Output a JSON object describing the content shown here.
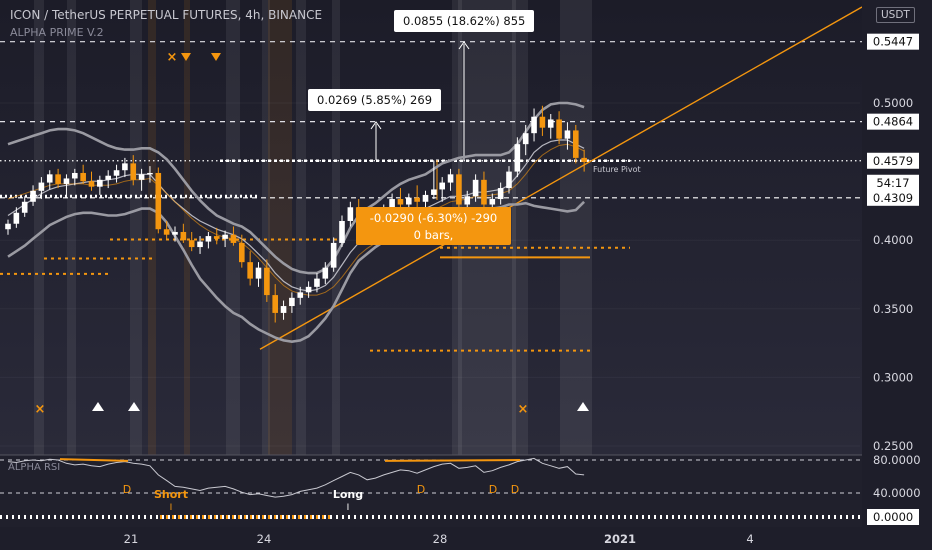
{
  "header": {
    "title": "ICON / TetherUS PERPETUAL FUTURES, 4h, BINANCE",
    "indicator": "ALPHA PRIME V.2",
    "currency": "USDT"
  },
  "colors": {
    "up_candle": "#ffffff",
    "down_candle": "#f4960f",
    "accent_orange": "#f4960f",
    "band_gray": "#9a9aa2",
    "price_badge": "#ffffff"
  },
  "annotations": {
    "measure_top": "0.0855 (18.62%) 855",
    "measure_mid": "0.0269 (5.85%) 269",
    "measure_drop_line1": "-0.0290 (-6.30%) -290",
    "measure_drop_line2": "0 bars,",
    "pivot_label": "Future Pivot"
  },
  "price_axis": {
    "ticks": [
      "0.5000",
      "0.4000",
      "0.3500",
      "0.3000",
      "0.2500"
    ],
    "badges": [
      {
        "label": "0.5447",
        "style": "white"
      },
      {
        "label": "0.4864",
        "style": "white"
      },
      {
        "label": "0.4579",
        "style": "white"
      },
      {
        "label": "54:17",
        "style": "white"
      },
      {
        "label": "0.4309",
        "style": "white"
      }
    ]
  },
  "time_axis": {
    "ticks": [
      "21",
      "24",
      "28",
      "4"
    ],
    "year_tick": "2021"
  },
  "oscillator": {
    "label": "ALPHA RSI",
    "ticks": [
      "80.0000",
      "40.0000",
      "0.0000"
    ],
    "signals": [
      "D",
      "D",
      "D",
      "D"
    ],
    "short_label": "Short",
    "long_label": "Long",
    "short_marker": "I",
    "long_marker": "I"
  },
  "chart_data": {
    "type": "candlestick",
    "symbol": "ICON / TetherUS PERPETUAL FUTURES",
    "timeframe": "4h",
    "exchange": "BINANCE",
    "y_range": [
      0.24,
      0.57
    ],
    "x_ticks": [
      "21",
      "24",
      "28",
      "2021",
      "4"
    ],
    "candles": [
      [
        0.408,
        0.415,
        0.404,
        0.412
      ],
      [
        0.412,
        0.424,
        0.409,
        0.42
      ],
      [
        0.42,
        0.432,
        0.417,
        0.428
      ],
      [
        0.428,
        0.44,
        0.425,
        0.436
      ],
      [
        0.436,
        0.446,
        0.43,
        0.442
      ],
      [
        0.442,
        0.451,
        0.437,
        0.448
      ],
      [
        0.448,
        0.452,
        0.438,
        0.441
      ],
      [
        0.441,
        0.448,
        0.432,
        0.445
      ],
      [
        0.445,
        0.452,
        0.44,
        0.449
      ],
      [
        0.449,
        0.455,
        0.441,
        0.443
      ],
      [
        0.443,
        0.45,
        0.436,
        0.439
      ],
      [
        0.439,
        0.447,
        0.433,
        0.444
      ],
      [
        0.444,
        0.451,
        0.438,
        0.447
      ],
      [
        0.447,
        0.455,
        0.442,
        0.451
      ],
      [
        0.451,
        0.46,
        0.446,
        0.456
      ],
      [
        0.456,
        0.462,
        0.44,
        0.444
      ],
      [
        0.444,
        0.452,
        0.436,
        0.448
      ],
      [
        0.448,
        0.454,
        0.442,
        0.449
      ],
      [
        0.449,
        0.453,
        0.405,
        0.408
      ],
      [
        0.408,
        0.414,
        0.401,
        0.404
      ],
      [
        0.404,
        0.41,
        0.399,
        0.406
      ],
      [
        0.406,
        0.412,
        0.398,
        0.4
      ],
      [
        0.4,
        0.406,
        0.392,
        0.395
      ],
      [
        0.395,
        0.403,
        0.39,
        0.399
      ],
      [
        0.399,
        0.406,
        0.394,
        0.403
      ],
      [
        0.403,
        0.409,
        0.397,
        0.401
      ],
      [
        0.401,
        0.407,
        0.395,
        0.404
      ],
      [
        0.404,
        0.41,
        0.396,
        0.398
      ],
      [
        0.398,
        0.404,
        0.38,
        0.384
      ],
      [
        0.384,
        0.392,
        0.367,
        0.372
      ],
      [
        0.372,
        0.384,
        0.366,
        0.38
      ],
      [
        0.38,
        0.386,
        0.355,
        0.36
      ],
      [
        0.36,
        0.368,
        0.34,
        0.347
      ],
      [
        0.347,
        0.356,
        0.342,
        0.352
      ],
      [
        0.352,
        0.362,
        0.347,
        0.358
      ],
      [
        0.358,
        0.366,
        0.353,
        0.362
      ],
      [
        0.362,
        0.37,
        0.358,
        0.366
      ],
      [
        0.366,
        0.376,
        0.362,
        0.372
      ],
      [
        0.372,
        0.384,
        0.368,
        0.38
      ],
      [
        0.38,
        0.402,
        0.377,
        0.398
      ],
      [
        0.398,
        0.418,
        0.395,
        0.414
      ],
      [
        0.414,
        0.428,
        0.41,
        0.424
      ],
      [
        0.424,
        0.43,
        0.412,
        0.418
      ],
      [
        0.418,
        0.424,
        0.402,
        0.406
      ],
      [
        0.406,
        0.416,
        0.402,
        0.412
      ],
      [
        0.412,
        0.426,
        0.409,
        0.422
      ],
      [
        0.422,
        0.434,
        0.418,
        0.43
      ],
      [
        0.43,
        0.438,
        0.422,
        0.426
      ],
      [
        0.426,
        0.434,
        0.42,
        0.431
      ],
      [
        0.431,
        0.44,
        0.424,
        0.428
      ],
      [
        0.428,
        0.436,
        0.423,
        0.433
      ],
      [
        0.433,
        0.458,
        0.43,
        0.437
      ],
      [
        0.437,
        0.446,
        0.428,
        0.442
      ],
      [
        0.442,
        0.452,
        0.436,
        0.448
      ],
      [
        0.448,
        0.452,
        0.422,
        0.426
      ],
      [
        0.426,
        0.436,
        0.42,
        0.432
      ],
      [
        0.432,
        0.448,
        0.428,
        0.444
      ],
      [
        0.444,
        0.45,
        0.42,
        0.426
      ],
      [
        0.426,
        0.434,
        0.418,
        0.43
      ],
      [
        0.43,
        0.442,
        0.426,
        0.438
      ],
      [
        0.438,
        0.454,
        0.434,
        0.45
      ],
      [
        0.45,
        0.475,
        0.446,
        0.47
      ],
      [
        0.47,
        0.484,
        0.462,
        0.478
      ],
      [
        0.478,
        0.496,
        0.472,
        0.49
      ],
      [
        0.49,
        0.498,
        0.476,
        0.482
      ],
      [
        0.482,
        0.492,
        0.474,
        0.488
      ],
      [
        0.488,
        0.494,
        0.47,
        0.474
      ],
      [
        0.474,
        0.486,
        0.466,
        0.48
      ],
      [
        0.48,
        0.484,
        0.456,
        0.46
      ],
      [
        0.46,
        0.466,
        0.45,
        0.457
      ]
    ],
    "series": [
      {
        "values": [
          0.47,
          0.472,
          0.474,
          0.476,
          0.478,
          0.48,
          0.481,
          0.481,
          0.48,
          0.478,
          0.475,
          0.472,
          0.469,
          0.467,
          0.466,
          0.466,
          0.467,
          0.467,
          0.464,
          0.459,
          0.452,
          0.444,
          0.436,
          0.429,
          0.423,
          0.418,
          0.415,
          0.412,
          0.41,
          0.406,
          0.4,
          0.394,
          0.388,
          0.383,
          0.379,
          0.377,
          0.376,
          0.376,
          0.379,
          0.386,
          0.397,
          0.409,
          0.418,
          0.423,
          0.427,
          0.432,
          0.437,
          0.441,
          0.444,
          0.446,
          0.448,
          0.452,
          0.456,
          0.458,
          0.46,
          0.461,
          0.462,
          0.462,
          0.462,
          0.462,
          0.464,
          0.47,
          0.479,
          0.488,
          0.495,
          0.499,
          0.5,
          0.5,
          0.499,
          0.497
        ]
      },
      {
        "values": [
          0.388,
          0.392,
          0.396,
          0.401,
          0.406,
          0.411,
          0.414,
          0.417,
          0.419,
          0.42,
          0.42,
          0.419,
          0.418,
          0.418,
          0.419,
          0.421,
          0.423,
          0.423,
          0.42,
          0.413,
          0.403,
          0.393,
          0.382,
          0.372,
          0.365,
          0.358,
          0.352,
          0.347,
          0.344,
          0.339,
          0.335,
          0.332,
          0.329,
          0.327,
          0.326,
          0.327,
          0.33,
          0.336,
          0.343,
          0.352,
          0.364,
          0.376,
          0.385,
          0.39,
          0.395,
          0.399,
          0.403,
          0.405,
          0.406,
          0.407,
          0.408,
          0.41,
          0.413,
          0.416,
          0.418,
          0.419,
          0.42,
          0.421,
          0.423,
          0.424,
          0.426,
          0.426,
          0.427,
          0.425,
          0.424,
          0.423,
          0.422,
          0.421,
          0.422,
          0.428
        ]
      },
      {
        "values": [
          0.418,
          0.422,
          0.426,
          0.43,
          0.434,
          0.437,
          0.439,
          0.44,
          0.441,
          0.442,
          0.443,
          0.443,
          0.444,
          0.445,
          0.447,
          0.448,
          0.448,
          0.448,
          0.441,
          0.434,
          0.428,
          0.423,
          0.418,
          0.414,
          0.411,
          0.408,
          0.406,
          0.404,
          0.401,
          0.396,
          0.39,
          0.384,
          0.376,
          0.37,
          0.366,
          0.364,
          0.363,
          0.364,
          0.367,
          0.373,
          0.382,
          0.391,
          0.398,
          0.401,
          0.404,
          0.408,
          0.413,
          0.416,
          0.419,
          0.421,
          0.423,
          0.426,
          0.429,
          0.432,
          0.432,
          0.433,
          0.435,
          0.435,
          0.436,
          0.437,
          0.44,
          0.447,
          0.455,
          0.464,
          0.469,
          0.472,
          0.473,
          0.473,
          0.47,
          0.467
        ]
      },
      {
        "values": [
          0.43,
          0.432,
          0.434,
          0.436,
          0.438,
          0.44,
          0.441,
          0.441,
          0.441,
          0.441,
          0.44,
          0.44,
          0.44,
          0.441,
          0.443,
          0.444,
          0.444,
          0.445,
          0.44,
          0.434,
          0.428,
          0.422,
          0.416,
          0.411,
          0.407,
          0.404,
          0.402,
          0.401,
          0.398,
          0.393,
          0.387,
          0.38,
          0.373,
          0.367,
          0.363,
          0.361,
          0.36,
          0.36,
          0.362,
          0.366,
          0.373,
          0.381,
          0.389,
          0.394,
          0.398,
          0.402,
          0.407,
          0.411,
          0.414,
          0.417,
          0.419,
          0.422,
          0.425,
          0.428,
          0.429,
          0.43,
          0.432,
          0.432,
          0.433,
          0.434,
          0.436,
          0.441,
          0.448,
          0.456,
          0.462,
          0.466,
          0.469,
          0.47,
          0.468,
          0.465
        ]
      }
    ],
    "levels": [
      0.5447,
      0.4864,
      0.4579,
      0.4309,
      0.395,
      0.385,
      0.3195,
      0.413,
      0.405
    ],
    "rsi": [
      78,
      77,
      79,
      80,
      79,
      81,
      80,
      76,
      74,
      75,
      73,
      72,
      75,
      77,
      78,
      76,
      75,
      73,
      62,
      55,
      48,
      47,
      45,
      43,
      46,
      47,
      48,
      45,
      41,
      38,
      39,
      37,
      35,
      36,
      38,
      42,
      44,
      46,
      50,
      55,
      60,
      65,
      62,
      56,
      58,
      62,
      65,
      68,
      67,
      64,
      68,
      72,
      75,
      76,
      70,
      71,
      73,
      65,
      67,
      71,
      74,
      78,
      80,
      82,
      76,
      73,
      70,
      72,
      63,
      62
    ]
  }
}
